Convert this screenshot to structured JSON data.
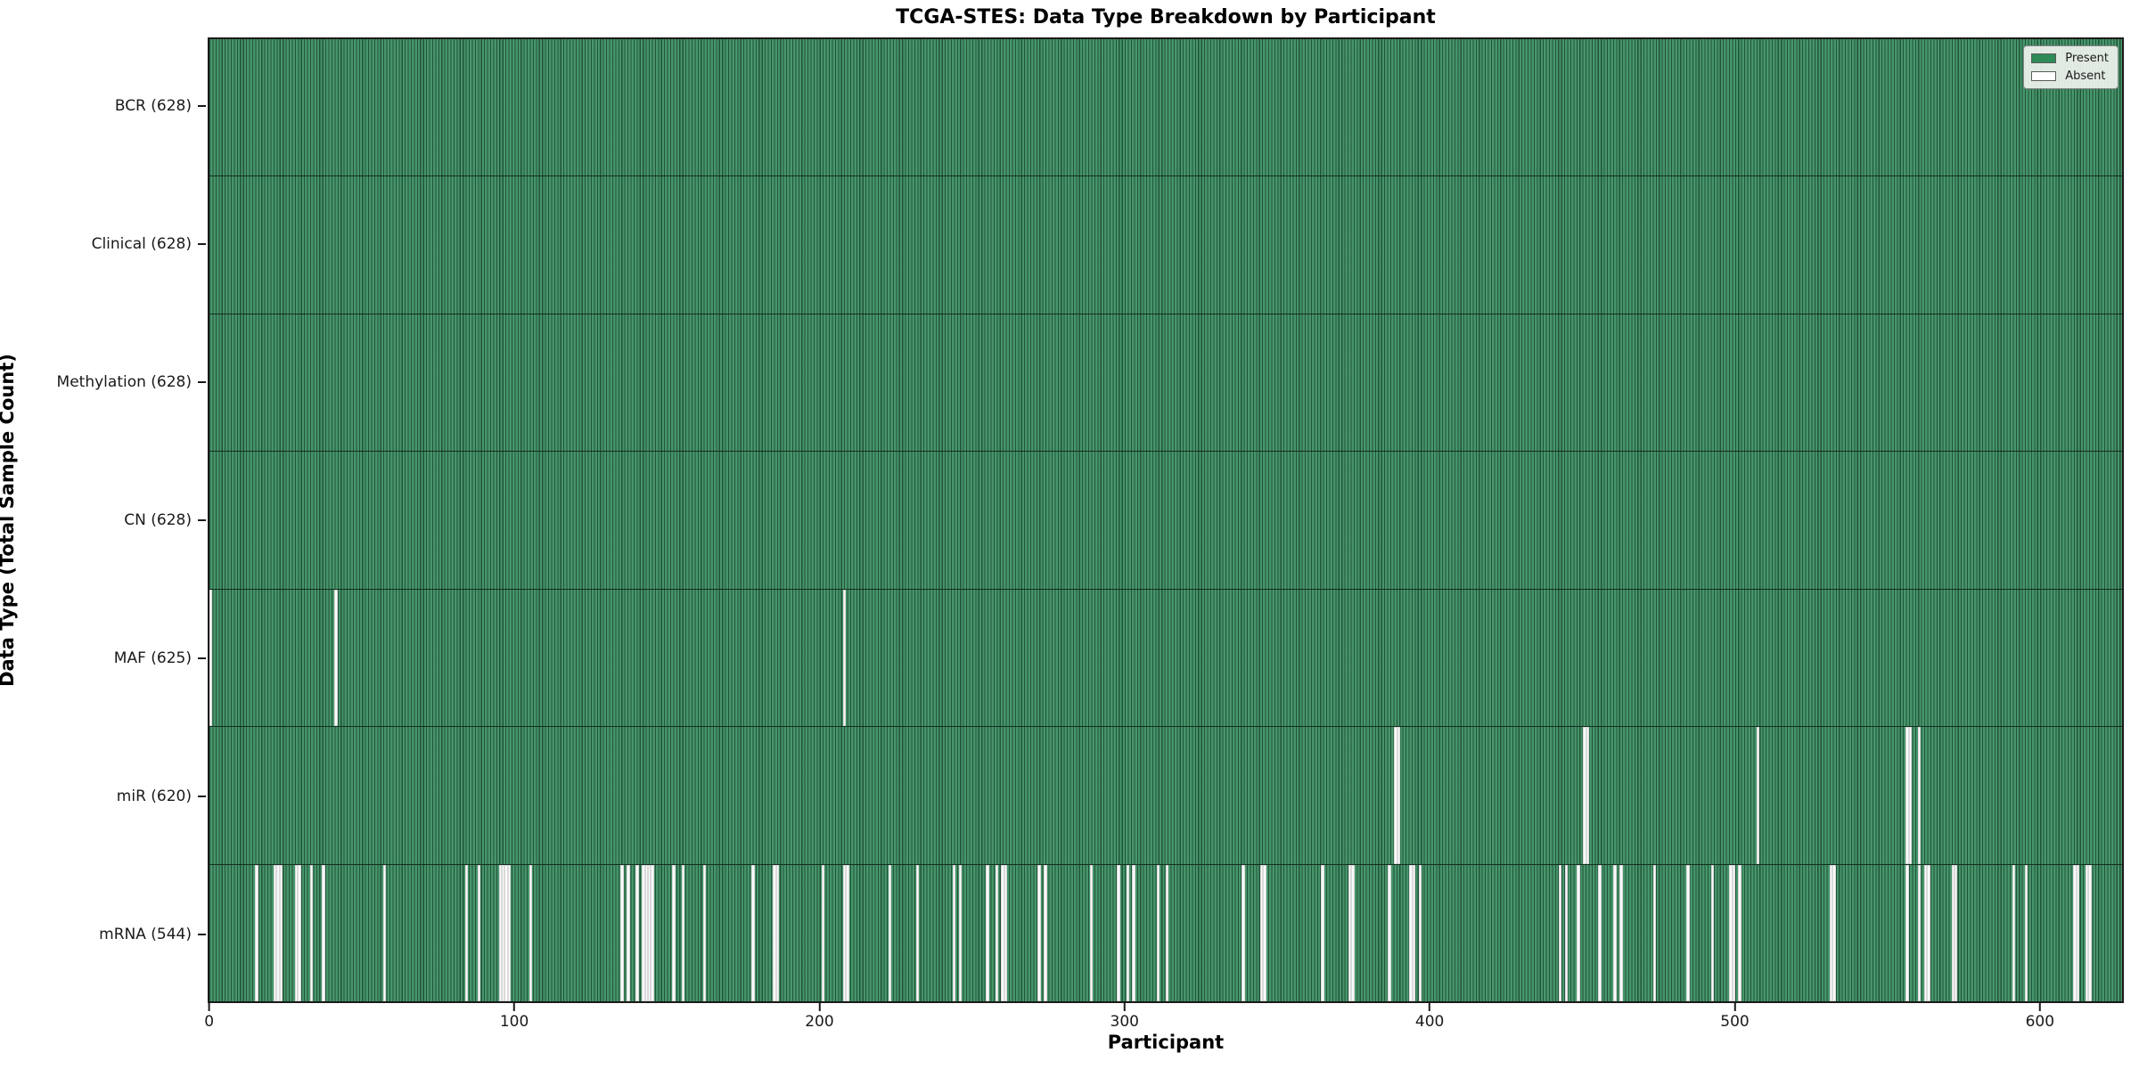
{
  "chart_data": {
    "type": "heatmap",
    "title": "TCGA-STES: Data Type Breakdown by Participant",
    "xlabel": "Participant",
    "ylabel": "Data Type (Total Sample Count)",
    "n_participants": 628,
    "x_ticks": [
      0,
      100,
      200,
      300,
      400,
      500,
      600
    ],
    "legend": [
      {
        "name": "present",
        "label": "Present",
        "color": "#2e8b57"
      },
      {
        "name": "absent",
        "label": "Absent",
        "color": "#ffffff"
      }
    ],
    "colors": {
      "present_fill": "#47966b",
      "bar_edge": "#142e1f",
      "absent_fill": "#fafafa"
    },
    "rows": [
      {
        "name": "BCR",
        "label": "BCR (628)",
        "total": 628,
        "absent": []
      },
      {
        "name": "Clinical",
        "label": "Clinical (628)",
        "total": 628,
        "absent": []
      },
      {
        "name": "Methylation",
        "label": "Methylation (628)",
        "total": 628,
        "absent": []
      },
      {
        "name": "CN",
        "label": "CN (628)",
        "total": 628,
        "absent": []
      },
      {
        "name": "MAF",
        "label": "MAF (625)",
        "total": 625,
        "absent": [
          0,
          41,
          208
        ]
      },
      {
        "name": "miR",
        "label": "miR (620)",
        "total": 620,
        "absent": [
          389,
          390,
          451,
          452,
          508,
          557,
          558,
          561
        ]
      },
      {
        "name": "mRNA",
        "label": "mRNA (544)",
        "total": 544,
        "absent": [
          15,
          21,
          22,
          23,
          28,
          29,
          33,
          37,
          57,
          84,
          88,
          95,
          96,
          97,
          98,
          105,
          135,
          137,
          140,
          142,
          143,
          144,
          145,
          152,
          155,
          162,
          178,
          185,
          186,
          201,
          208,
          209,
          223,
          232,
          244,
          246,
          255,
          258,
          260,
          261,
          272,
          274,
          289,
          298,
          301,
          303,
          311,
          314,
          339,
          345,
          346,
          365,
          374,
          375,
          387,
          394,
          395,
          397,
          443,
          445,
          449,
          456,
          461,
          463,
          474,
          485,
          493,
          499,
          500,
          502,
          532,
          533,
          557,
          561,
          563,
          564,
          572,
          573,
          592,
          596,
          612,
          613,
          616,
          617
        ]
      }
    ]
  }
}
